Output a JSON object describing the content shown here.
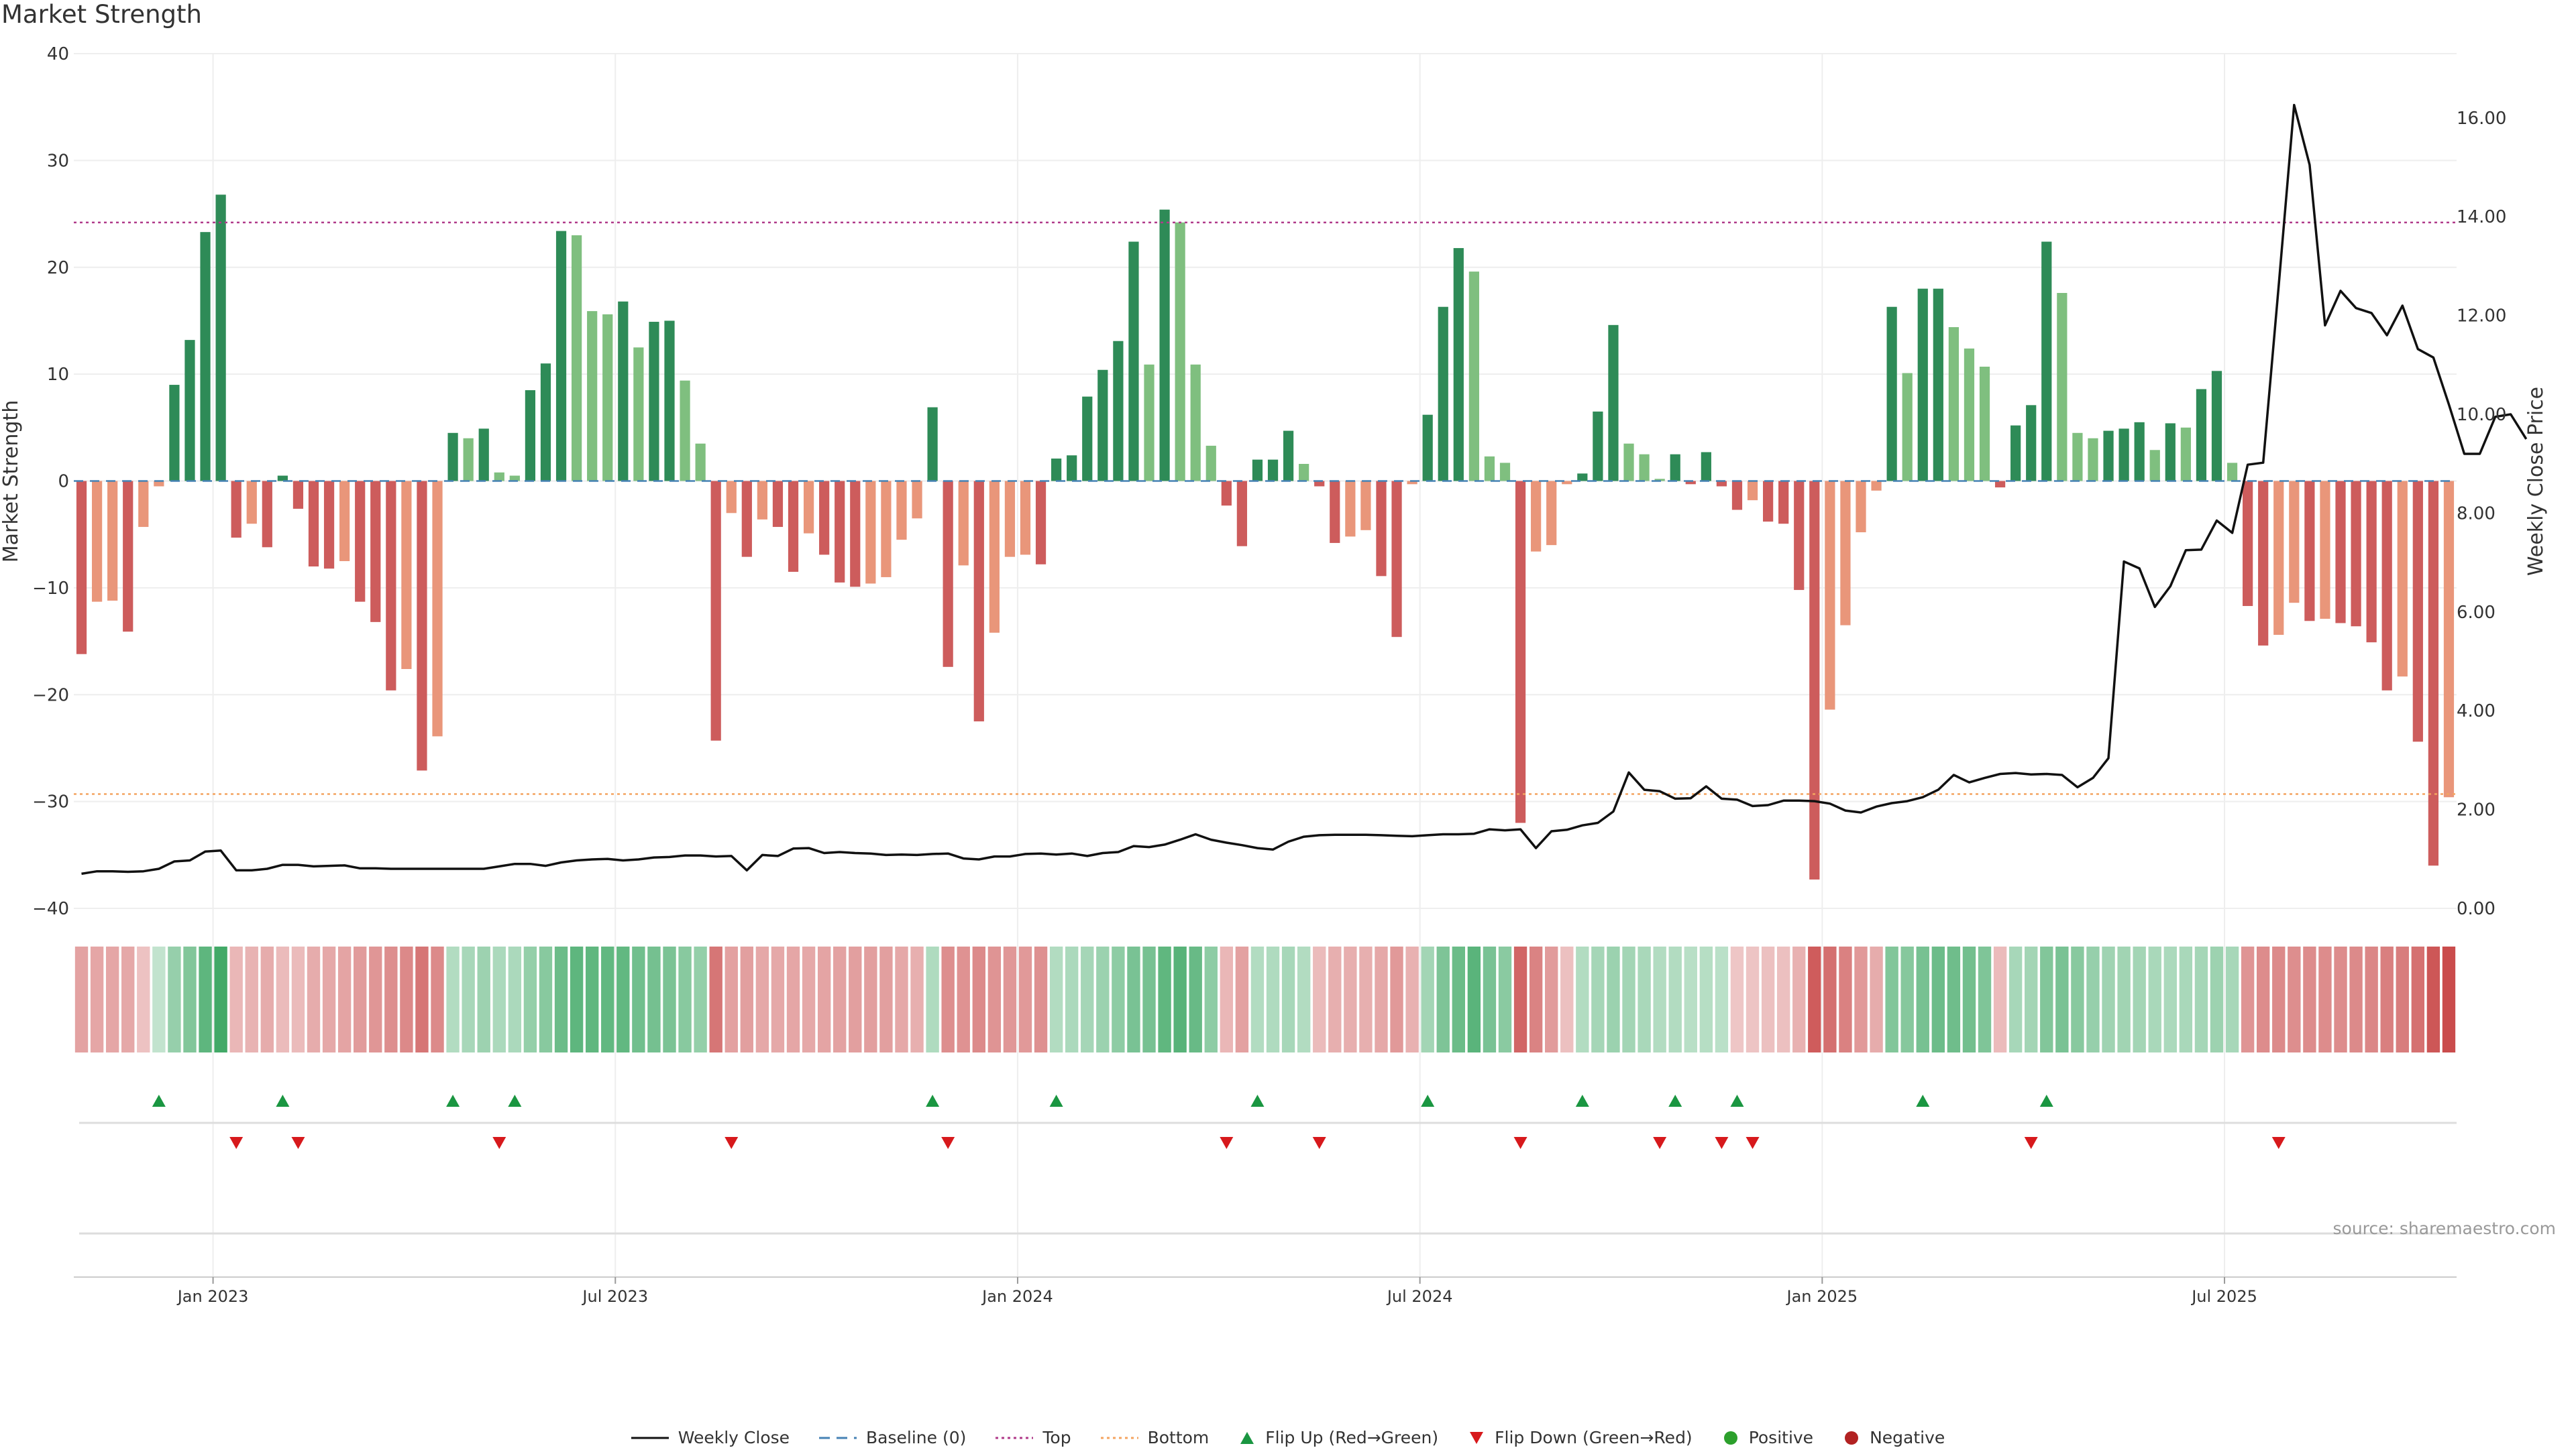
{
  "colors": {
    "strong_green": "#2e8b57",
    "light_green": "#7fbf7f",
    "strong_red": "#cd5c5c",
    "light_red": "#e9967a",
    "price_line": "#111111",
    "top_line": "#b03a8a",
    "bottom_line": "#f4a460",
    "baseline": "#4682b4",
    "flip_up": "#1a9641",
    "flip_down": "#d7191c",
    "positive": "#2ca02c",
    "negative": "#b22222"
  },
  "source_note": "source: sharemaestro.com",
  "legend": [
    {
      "label": "Weekly Close",
      "kind": "line",
      "color": "#111111"
    },
    {
      "label": "Baseline (0)",
      "kind": "dash",
      "color": "#4682b4"
    },
    {
      "label": "Top",
      "kind": "dot",
      "color": "#b03a8a"
    },
    {
      "label": "Bottom",
      "kind": "dot",
      "color": "#f4a460"
    },
    {
      "label": "Flip Up (Red→Green)",
      "kind": "tri-up",
      "color": "#1a9641"
    },
    {
      "label": "Flip Down (Green→Red)",
      "kind": "tri-down",
      "color": "#d7191c"
    },
    {
      "label": "Positive",
      "kind": "circle",
      "color": "#2ca02c"
    },
    {
      "label": "Negative",
      "kind": "circle",
      "color": "#b22222"
    }
  ],
  "chart_data": {
    "type": "bar",
    "title": "Market Strength",
    "ylabel": "Market Strength",
    "y2label": "Weekly Close Price",
    "ylim": [
      -40,
      40
    ],
    "y2lim": [
      0,
      17.3
    ],
    "yticks": [
      "40",
      "30",
      "20",
      "10",
      "0",
      "−10",
      "−20",
      "−30",
      "−40"
    ],
    "y2ticks": [
      "16.00",
      "14.00",
      "12.00",
      "10.00",
      "8.00",
      "6.00",
      "4.00",
      "2.00",
      "0.00"
    ],
    "xticks": [
      "Jan 2023",
      "Jul 2023",
      "Jan 2024",
      "Jul 2024",
      "Jan 2025",
      "Jul 2025"
    ],
    "xtick_weeks": [
      9,
      35,
      61,
      87,
      113,
      139
    ],
    "top_threshold": 24.2,
    "bottom_threshold": -29.3,
    "grid": true,
    "legend_position": "bottom-center",
    "series": [
      {
        "name": "Market Strength",
        "values": [
          -16.2,
          -11.3,
          -11.2,
          -14.1,
          -4.3,
          -0.5,
          9.0,
          13.2,
          23.3,
          26.8,
          -5.3,
          -4.0,
          -6.2,
          0.5,
          -2.6,
          -8.0,
          -8.2,
          -7.5,
          -11.3,
          -13.2,
          -19.6,
          -17.6,
          -27.1,
          -23.9,
          4.5,
          4.0,
          4.9,
          0.8,
          0.5,
          8.5,
          11.0,
          23.4,
          23.0,
          15.9,
          15.6,
          16.8,
          12.5,
          14.9,
          15.0,
          9.4,
          3.5,
          -24.3,
          -3.0,
          -7.1,
          -3.6,
          -4.3,
          -8.5,
          -4.9,
          -6.9,
          -9.5,
          -9.9,
          -9.6,
          -9.0,
          -5.5,
          -3.5,
          6.9,
          -17.4,
          -7.9,
          -22.5,
          -14.2,
          -7.1,
          -6.9,
          -7.8,
          2.1,
          2.4,
          7.9,
          10.4,
          13.1,
          22.4,
          10.9,
          25.4,
          24.2,
          10.9,
          3.3,
          -2.3,
          -6.1,
          2.0,
          2.0,
          4.7,
          1.6,
          -0.5,
          -5.8,
          -5.2,
          -4.6,
          -8.9,
          -14.6,
          -0.3,
          6.2,
          16.3,
          21.8,
          19.6,
          2.3,
          1.7,
          -32.0,
          -6.6,
          -6.0,
          -0.3,
          0.7,
          6.5,
          14.6,
          3.5,
          2.5,
          0.2,
          2.5,
          -0.3,
          2.7,
          -0.5,
          -2.7,
          -1.8,
          -3.8,
          -4.0,
          -10.2,
          -37.3,
          -21.4,
          -13.5,
          -4.8,
          -0.9,
          16.3,
          10.1,
          18.0,
          18.0,
          14.4,
          12.4,
          10.7,
          -0.6,
          5.2,
          7.1,
          22.4,
          17.6,
          4.5,
          4.0,
          4.7,
          4.9,
          5.5,
          2.9,
          5.4,
          5.0,
          8.6,
          10.3,
          1.7,
          -11.7,
          -15.4,
          -14.4,
          -11.4,
          -13.1,
          -12.9,
          -13.3,
          -13.6,
          -15.1,
          -19.6,
          -18.3,
          -24.4,
          -36.0,
          -29.6
        ]
      },
      {
        "name": "Weekly Close",
        "values": [
          0.7,
          0.75,
          0.75,
          0.74,
          0.75,
          0.8,
          0.95,
          0.97,
          1.15,
          1.17,
          0.77,
          0.77,
          0.8,
          0.88,
          0.88,
          0.85,
          0.86,
          0.87,
          0.81,
          0.81,
          0.8,
          0.8,
          0.8,
          0.8,
          0.8,
          0.8,
          0.8,
          0.85,
          0.9,
          0.9,
          0.86,
          0.93,
          0.97,
          0.99,
          1.0,
          0.97,
          0.99,
          1.03,
          1.04,
          1.07,
          1.07,
          1.05,
          1.06,
          0.77,
          1.08,
          1.06,
          1.21,
          1.22,
          1.12,
          1.14,
          1.12,
          1.11,
          1.08,
          1.09,
          1.08,
          1.1,
          1.11,
          1.01,
          0.99,
          1.05,
          1.05,
          1.1,
          1.11,
          1.09,
          1.11,
          1.06,
          1.12,
          1.14,
          1.26,
          1.24,
          1.29,
          1.39,
          1.5,
          1.39,
          1.33,
          1.28,
          1.22,
          1.19,
          1.35,
          1.45,
          1.48,
          1.49,
          1.49,
          1.49,
          1.48,
          1.47,
          1.46,
          1.48,
          1.5,
          1.5,
          1.51,
          1.6,
          1.58,
          1.6,
          1.22,
          1.56,
          1.59,
          1.68,
          1.73,
          1.96,
          2.75,
          2.4,
          2.37,
          2.22,
          2.23,
          2.47,
          2.22,
          2.2,
          2.07,
          2.09,
          2.18,
          2.18,
          2.17,
          2.12,
          1.98,
          1.94,
          2.06,
          2.13,
          2.17,
          2.25,
          2.4,
          2.7,
          2.55,
          2.64,
          2.72,
          2.74,
          2.71,
          2.72,
          2.7,
          2.45,
          2.64,
          3.04,
          7.02,
          6.88,
          6.1,
          6.52,
          7.25,
          7.26,
          7.85,
          7.6,
          8.98,
          9.02,
          12.6,
          16.26,
          15.05,
          11.8,
          12.5,
          12.15,
          12.05,
          11.6,
          12.2,
          11.32,
          11.15,
          10.2,
          9.2,
          9.2,
          9.95,
          10.0,
          9.5
        ]
      }
    ],
    "heatmap_values": [
      -8.5,
      -7.9,
      -7.9,
      -7.5,
      -2.8,
      1.5,
      8.7,
      12.0,
      18.0,
      22.6,
      -4.9,
      -5.5,
      -6.8,
      -4.3,
      -4.0,
      -6.9,
      -7.5,
      -8.3,
      -9.9,
      -11.0,
      -12.6,
      -13.5,
      -17.0,
      -13.3,
      4.0,
      6.0,
      7.6,
      5.2,
      5.1,
      9.0,
      11.0,
      15.5,
      17.9,
      17.6,
      17.5,
      17.2,
      14.8,
      14.3,
      13.1,
      11.1,
      9.0,
      -17.0,
      -9.0,
      -9.5,
      -7.8,
      -7.5,
      -8.0,
      -7.6,
      -8.2,
      -8.7,
      -9.2,
      -9.5,
      -9.3,
      -7.5,
      -6.2,
      4.5,
      -12.5,
      -11.9,
      -13.2,
      -11.3,
      -10.6,
      -10.5,
      -12.0,
      4.0,
      5.1,
      6.2,
      8.0,
      10.0,
      13.4,
      14.0,
      17.7,
      18.9,
      16.4,
      10.0,
      -5.0,
      -9.0,
      4.0,
      4.5,
      5.8,
      4.2,
      -4.0,
      -6.4,
      -6.5,
      -6.3,
      -7.5,
      -10.5,
      -5.8,
      6.7,
      12.7,
      16.0,
      18.8,
      13.4,
      10.7,
      -20.0,
      -14.5,
      -10.0,
      -3.0,
      4.1,
      6.2,
      8.0,
      6.5,
      5.5,
      4.1,
      4.3,
      3.0,
      3.5,
      2.6,
      -2.0,
      -2.5,
      -3.0,
      -3.2,
      -6.0,
      -22.0,
      -18.5,
      -15.0,
      -10.5,
      -6.8,
      12.0,
      11.6,
      13.9,
      15.6,
      15.2,
      14.5,
      12.5,
      -4.0,
      5.8,
      6.6,
      12.0,
      13.5,
      11.0,
      8.8,
      7.3,
      6.8,
      6.6,
      5.6,
      5.1,
      5.4,
      6.3,
      7.8,
      5.8,
      -11.5,
      -12.9,
      -13.0,
      -12.6,
      -12.8,
      -12.7,
      -12.9,
      -13.0,
      -13.9,
      -15.1,
      -15.6,
      -18.0,
      -23.0,
      -25.0
    ],
    "flip_up_weeks": [
      5,
      13,
      24,
      28,
      55,
      63,
      76,
      87,
      97,
      103,
      107,
      119,
      127
    ],
    "flip_down_weeks": [
      10,
      14,
      27,
      42,
      56,
      74,
      80,
      93,
      102,
      106,
      108,
      126,
      142
    ]
  }
}
